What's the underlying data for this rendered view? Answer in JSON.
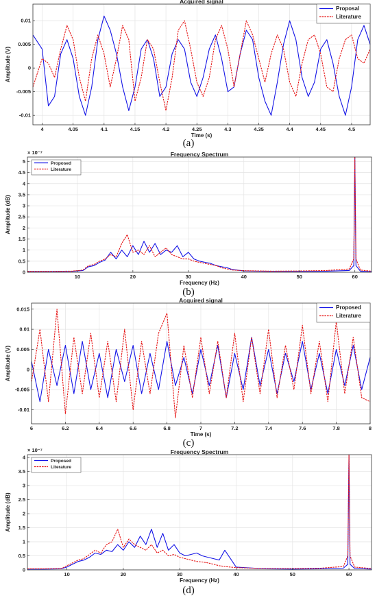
{
  "captions": [
    "(a)",
    "(b)",
    "(c)",
    "(d)"
  ],
  "chart_data": [
    {
      "type": "line",
      "title": "Acquired signal",
      "xlabel": "Time (s)",
      "ylabel": "Amplitude (V)",
      "xlim": [
        3.985,
        4.53
      ],
      "ylim": [
        -0.012,
        0.0135
      ],
      "xticks": [
        4,
        4.05,
        4.1,
        4.15,
        4.2,
        4.25,
        4.3,
        4.35,
        4.4,
        4.45,
        4.5
      ],
      "xtick_labels": [
        "4",
        "4.05",
        "4.1",
        "4.15",
        "4.2",
        "4.25",
        "4.3",
        "4.35",
        "4.4",
        "4.45",
        "4.5"
      ],
      "yticks": [
        -0.01,
        -0.005,
        0,
        0.005,
        0.01
      ],
      "ytick_labels": [
        "-0.01",
        "-0.005",
        "0",
        "0.005",
        "0.01"
      ],
      "grid": true,
      "legend_position": "top-right",
      "series": [
        {
          "name": "Proposal",
          "color": "#1515e6",
          "style": "solid",
          "x": [
            3.985,
            4.0,
            4.01,
            4.02,
            4.03,
            4.04,
            4.05,
            4.06,
            4.07,
            4.08,
            4.09,
            4.1,
            4.11,
            4.12,
            4.13,
            4.14,
            4.15,
            4.16,
            4.17,
            4.18,
            4.19,
            4.2,
            4.21,
            4.22,
            4.23,
            4.24,
            4.25,
            4.26,
            4.27,
            4.28,
            4.29,
            4.3,
            4.31,
            4.32,
            4.33,
            4.34,
            4.35,
            4.36,
            4.37,
            4.38,
            4.39,
            4.4,
            4.41,
            4.42,
            4.43,
            4.44,
            4.45,
            4.46,
            4.47,
            4.48,
            4.49,
            4.5,
            4.51,
            4.52,
            4.53
          ],
          "y": [
            0.007,
            0.004,
            -0.008,
            -0.006,
            0.003,
            0.006,
            0.002,
            -0.006,
            -0.01,
            -0.004,
            0.006,
            0.011,
            0.008,
            0.003,
            -0.004,
            -0.009,
            -0.004,
            0.004,
            0.006,
            0.002,
            -0.006,
            -0.004,
            0.003,
            0.006,
            0.004,
            -0.003,
            -0.006,
            -0.002,
            0.004,
            0.007,
            0.002,
            -0.005,
            -0.004,
            0.003,
            0.008,
            0.006,
            -0.002,
            -0.007,
            -0.01,
            -0.003,
            0.005,
            0.01,
            0.006,
            -0.002,
            -0.006,
            -0.003,
            0.004,
            0.006,
            0.001,
            -0.006,
            -0.01,
            -0.004,
            0.006,
            0.009,
            0.005
          ]
        },
        {
          "name": "Literature",
          "color": "#e61515",
          "style": "dashed",
          "x": [
            3.985,
            4.0,
            4.01,
            4.02,
            4.03,
            4.04,
            4.05,
            4.06,
            4.07,
            4.08,
            4.09,
            4.1,
            4.11,
            4.12,
            4.13,
            4.14,
            4.15,
            4.16,
            4.17,
            4.18,
            4.19,
            4.2,
            4.21,
            4.22,
            4.23,
            4.24,
            4.25,
            4.26,
            4.27,
            4.28,
            4.29,
            4.3,
            4.31,
            4.32,
            4.33,
            4.34,
            4.35,
            4.36,
            4.37,
            4.38,
            4.39,
            4.4,
            4.41,
            4.42,
            4.43,
            4.44,
            4.45,
            4.46,
            4.47,
            4.48,
            4.49,
            4.5,
            4.51,
            4.52,
            4.53
          ],
          "y": [
            -0.004,
            0.002,
            0.001,
            -0.002,
            0.004,
            0.009,
            0.006,
            -0.002,
            -0.007,
            0.002,
            0.007,
            0.003,
            -0.004,
            0.002,
            0.009,
            0.006,
            -0.007,
            -0.002,
            0.006,
            0.004,
            -0.003,
            -0.009,
            -0.002,
            0.008,
            0.01,
            0.004,
            -0.003,
            -0.006,
            -0.002,
            0.006,
            0.009,
            0.004,
            -0.004,
            0.003,
            0.01,
            0.007,
            0.002,
            -0.003,
            0.003,
            0.007,
            0.004,
            -0.003,
            -0.006,
            0.001,
            0.006,
            0.007,
            0.003,
            -0.004,
            -0.005,
            0.002,
            0.006,
            0.007,
            0.002,
            0.001,
            0.004
          ]
        }
      ]
    },
    {
      "type": "line",
      "title": "Frequency Spectrum",
      "xlabel": "Frequency (Hz)",
      "ylabel": "Amplitude (dB)",
      "y_multiplier": "× 10⁻⁷",
      "xlim": [
        1,
        63
      ],
      "ylim": [
        0,
        5.2
      ],
      "xticks": [
        10,
        20,
        30,
        40,
        50,
        60
      ],
      "xtick_labels": [
        "10",
        "20",
        "30",
        "40",
        "50",
        "60"
      ],
      "yticks": [
        0,
        0.5,
        1,
        1.5,
        2,
        2.5,
        3,
        3.5,
        4,
        4.5,
        5
      ],
      "ytick_labels": [
        "0",
        "0.5",
        "1",
        "1.5",
        "2",
        "2.5",
        "3",
        "3.5",
        "4",
        "4.5",
        "5"
      ],
      "grid": true,
      "legend_position": "top-left",
      "series": [
        {
          "name": "Proposed",
          "color": "#1515e6",
          "style": "solid",
          "x": [
            1,
            5,
            9,
            11,
            12,
            13,
            14,
            15,
            16,
            17,
            18,
            19,
            20,
            21,
            22,
            23,
            24,
            25,
            26,
            27,
            28,
            29,
            30,
            31,
            32,
            33,
            34,
            35,
            36,
            37,
            38,
            40,
            45,
            50,
            55,
            59,
            59.8,
            60,
            60.2,
            61,
            63
          ],
          "y": [
            0.03,
            0.03,
            0.04,
            0.08,
            0.25,
            0.3,
            0.45,
            0.55,
            0.9,
            0.6,
            1.0,
            0.7,
            1.2,
            0.8,
            1.4,
            0.9,
            1.3,
            0.8,
            1.0,
            0.9,
            1.2,
            0.7,
            0.9,
            0.6,
            0.5,
            0.45,
            0.4,
            0.3,
            0.25,
            0.2,
            0.12,
            0.06,
            0.04,
            0.04,
            0.05,
            0.08,
            0.3,
            5.2,
            0.3,
            0.05,
            0.03
          ]
        },
        {
          "name": "Literature",
          "color": "#e61515",
          "style": "dashed",
          "x": [
            1,
            5,
            9,
            11,
            12,
            13,
            14,
            15,
            16,
            17,
            18,
            19,
            20,
            21,
            22,
            23,
            24,
            25,
            26,
            27,
            28,
            29,
            30,
            31,
            32,
            33,
            34,
            35,
            36,
            37,
            38,
            40,
            45,
            50,
            55,
            59,
            59.8,
            60,
            60.2,
            61,
            63
          ],
          "y": [
            0.04,
            0.04,
            0.05,
            0.1,
            0.3,
            0.35,
            0.5,
            0.6,
            0.8,
            0.7,
            1.3,
            1.7,
            0.9,
            1.0,
            0.8,
            1.2,
            0.7,
            0.9,
            1.1,
            0.8,
            0.7,
            0.6,
            0.6,
            0.5,
            0.45,
            0.4,
            0.35,
            0.3,
            0.2,
            0.15,
            0.1,
            0.07,
            0.05,
            0.06,
            0.08,
            0.15,
            0.6,
            5.2,
            0.6,
            0.1,
            0.05
          ]
        }
      ]
    },
    {
      "type": "line",
      "title": "Acquired signal",
      "xlabel": "Time (s)",
      "ylabel": "Amplitude (V)",
      "xlim": [
        6,
        8
      ],
      "ylim": [
        -0.0135,
        0.0165
      ],
      "xticks": [
        6,
        6.2,
        6.4,
        6.6,
        6.8,
        7,
        7.2,
        7.4,
        7.6,
        7.8,
        8
      ],
      "xtick_labels": [
        "6",
        "6.2",
        "6.4",
        "6.6",
        "6.8",
        "7",
        "7.2",
        "7.4",
        "7.6",
        "7.8",
        "8"
      ],
      "yticks": [
        -0.01,
        -0.005,
        0,
        0.005,
        0.01,
        0.015
      ],
      "ytick_labels": [
        "-0.01",
        "-0.005",
        "0",
        "0.005",
        "0.01",
        "0.015"
      ],
      "grid": true,
      "legend_position": "top-right",
      "series": [
        {
          "name": "Proposed",
          "color": "#1515e6",
          "style": "solid",
          "x": [
            6.0,
            6.05,
            6.1,
            6.15,
            6.2,
            6.25,
            6.3,
            6.35,
            6.4,
            6.45,
            6.5,
            6.55,
            6.6,
            6.65,
            6.7,
            6.75,
            6.8,
            6.85,
            6.9,
            6.95,
            7.0,
            7.05,
            7.1,
            7.15,
            7.2,
            7.25,
            7.3,
            7.35,
            7.4,
            7.45,
            7.5,
            7.55,
            7.6,
            7.65,
            7.7,
            7.75,
            7.8,
            7.85,
            7.9,
            7.95,
            8.0
          ],
          "y": [
            0.002,
            -0.008,
            0.005,
            -0.004,
            0.006,
            -0.006,
            0.007,
            -0.005,
            0.004,
            -0.007,
            0.005,
            -0.003,
            0.006,
            -0.006,
            0.004,
            -0.005,
            0.007,
            -0.004,
            0.003,
            -0.006,
            0.005,
            -0.004,
            0.006,
            -0.007,
            0.004,
            -0.005,
            0.008,
            -0.004,
            0.005,
            -0.006,
            0.004,
            -0.003,
            0.007,
            -0.005,
            0.004,
            -0.006,
            0.005,
            -0.004,
            0.006,
            -0.005,
            0.003
          ]
        },
        {
          "name": "Literature",
          "color": "#e61515",
          "style": "dashed",
          "x": [
            6.0,
            6.05,
            6.1,
            6.15,
            6.2,
            6.25,
            6.3,
            6.35,
            6.4,
            6.45,
            6.5,
            6.55,
            6.6,
            6.65,
            6.7,
            6.75,
            6.8,
            6.85,
            6.9,
            6.95,
            7.0,
            7.05,
            7.1,
            7.15,
            7.2,
            7.25,
            7.3,
            7.35,
            7.4,
            7.45,
            7.5,
            7.55,
            7.6,
            7.65,
            7.7,
            7.75,
            7.8,
            7.85,
            7.9,
            7.95,
            8.0
          ],
          "y": [
            -0.003,
            0.01,
            -0.008,
            0.015,
            -0.011,
            0.008,
            -0.006,
            0.009,
            -0.007,
            0.007,
            -0.008,
            0.01,
            -0.01,
            0.007,
            -0.006,
            0.009,
            0.014,
            -0.012,
            0.006,
            -0.007,
            0.008,
            -0.006,
            0.007,
            -0.007,
            0.009,
            -0.008,
            0.008,
            -0.006,
            0.01,
            -0.007,
            0.006,
            -0.005,
            0.011,
            -0.006,
            0.007,
            -0.008,
            0.012,
            -0.006,
            0.008,
            -0.007,
            -0.008
          ]
        }
      ]
    },
    {
      "type": "line",
      "title": "Frequency Spectrum",
      "xlabel": "Frequency (Hz)",
      "ylabel": "Amplitude (dB)",
      "y_multiplier": "× 10⁻⁷",
      "xlim": [
        3,
        64
      ],
      "ylim": [
        0,
        4.1
      ],
      "xticks": [
        10,
        20,
        30,
        40,
        50,
        60
      ],
      "xtick_labels": [
        "10",
        "20",
        "30",
        "40",
        "50",
        "60"
      ],
      "yticks": [
        0,
        0.5,
        1,
        1.5,
        2,
        2.5,
        3,
        3.5,
        4
      ],
      "ytick_labels": [
        "0",
        "0.5",
        "1",
        "1.5",
        "2",
        "2.5",
        "3",
        "3.5",
        "4"
      ],
      "grid": true,
      "legend_position": "top-left",
      "series": [
        {
          "name": "Proposed",
          "color": "#1515e6",
          "style": "solid",
          "x": [
            3,
            6,
            9,
            10,
            11,
            12,
            13,
            14,
            15,
            16,
            17,
            18,
            19,
            20,
            21,
            22,
            23,
            24,
            25,
            26,
            27,
            28,
            29,
            30,
            31,
            32,
            33,
            34,
            35,
            36,
            37,
            38,
            40,
            45,
            50,
            55,
            59,
            59.8,
            60,
            60.2,
            61,
            64
          ],
          "y": [
            0.03,
            0.03,
            0.04,
            0.1,
            0.2,
            0.3,
            0.35,
            0.45,
            0.6,
            0.55,
            0.7,
            0.65,
            0.9,
            0.7,
            1.0,
            0.8,
            1.2,
            0.9,
            1.45,
            0.8,
            1.3,
            0.7,
            0.9,
            0.6,
            0.5,
            0.55,
            0.6,
            0.5,
            0.45,
            0.4,
            0.35,
            0.7,
            0.1,
            0.04,
            0.03,
            0.04,
            0.06,
            0.2,
            4.1,
            0.2,
            0.05,
            0.03
          ]
        },
        {
          "name": "Literature",
          "color": "#e61515",
          "style": "dashed",
          "x": [
            3,
            6,
            9,
            10,
            11,
            12,
            13,
            14,
            15,
            16,
            17,
            18,
            19,
            20,
            21,
            22,
            23,
            24,
            25,
            26,
            27,
            28,
            29,
            30,
            31,
            32,
            33,
            34,
            35,
            36,
            37,
            38,
            40,
            45,
            50,
            55,
            59,
            59.8,
            60,
            60.2,
            61,
            64
          ],
          "y": [
            0.04,
            0.04,
            0.05,
            0.15,
            0.25,
            0.35,
            0.4,
            0.55,
            0.7,
            0.6,
            0.9,
            1.0,
            1.45,
            0.8,
            1.1,
            0.9,
            0.8,
            0.7,
            0.9,
            0.6,
            0.7,
            0.5,
            0.55,
            0.45,
            0.4,
            0.35,
            0.3,
            0.28,
            0.25,
            0.2,
            0.15,
            0.12,
            0.08,
            0.05,
            0.05,
            0.06,
            0.12,
            0.5,
            4.1,
            0.5,
            0.1,
            0.05
          ]
        }
      ]
    }
  ]
}
